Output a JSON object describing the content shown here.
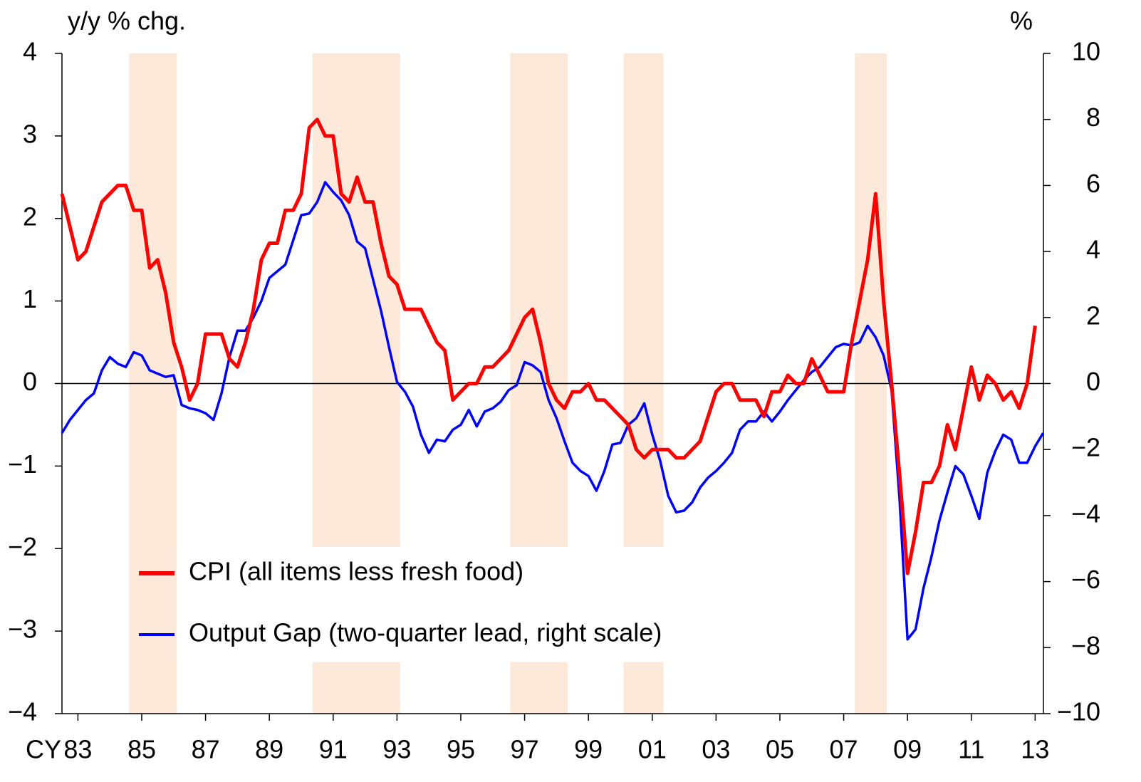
{
  "chart_data": {
    "type": "line",
    "y_label": "y/y % chg.",
    "y2_label": "%",
    "x_label": "CY",
    "x": [
      1983,
      1983.25,
      1983.5,
      1983.75,
      1984,
      1984.25,
      1984.5,
      1984.75,
      1985,
      1985.25,
      1985.5,
      1985.75,
      1986,
      1986.25,
      1986.5,
      1986.75,
      1987,
      1987.25,
      1987.5,
      1987.75,
      1988,
      1988.25,
      1988.5,
      1988.75,
      1989,
      1989.25,
      1989.5,
      1989.75,
      1990,
      1990.25,
      1990.5,
      1990.75,
      1991,
      1991.25,
      1991.5,
      1991.75,
      1992,
      1992.25,
      1992.5,
      1992.75,
      1993,
      1993.25,
      1993.5,
      1993.75,
      1994,
      1994.25,
      1994.5,
      1994.75,
      1995,
      1995.25,
      1995.5,
      1995.75,
      1996,
      1996.25,
      1996.5,
      1996.75,
      1997,
      1997.25,
      1997.5,
      1997.75,
      1998,
      1998.25,
      1998.5,
      1998.75,
      1999,
      1999.25,
      1999.5,
      1999.75,
      2000,
      2000.25,
      2000.5,
      2000.75,
      2001,
      2001.25,
      2001.5,
      2001.75,
      2002,
      2002.25,
      2002.5,
      2002.75,
      2003,
      2003.25,
      2003.5,
      2003.75,
      2004,
      2004.25,
      2004.5,
      2004.75,
      2005,
      2005.25,
      2005.5,
      2005.75,
      2006,
      2006.25,
      2006.5,
      2006.75,
      2007,
      2007.25,
      2007.5,
      2007.75,
      2008,
      2008.25,
      2008.5,
      2008.75,
      2009,
      2009.25,
      2009.5,
      2009.75,
      2010,
      2010.25,
      2010.5,
      2010.75,
      2011,
      2011.25,
      2011.5,
      2011.75,
      2012,
      2012.25,
      2012.5,
      2012.75,
      2013,
      2013.25,
      2013.5,
      2013.75
    ],
    "series": [
      {
        "name": "CPI (all items less fresh food)",
        "color": "#ff0000",
        "axis": "y",
        "values": [
          2.3,
          1.9,
          1.5,
          1.6,
          1.9,
          2.2,
          2.3,
          2.4,
          2.4,
          2.1,
          2.1,
          1.4,
          1.5,
          1.1,
          0.5,
          0.2,
          -0.2,
          0,
          0.6,
          0.6,
          0.6,
          0.3,
          0.2,
          0.5,
          0.9,
          1.5,
          1.7,
          1.7,
          2.1,
          2.1,
          2.3,
          3.1,
          3.2,
          3.0,
          3.0,
          2.3,
          2.2,
          2.5,
          2.2,
          2.2,
          1.7,
          1.3,
          1.2,
          0.9,
          0.9,
          0.9,
          0.7,
          0.5,
          0.4,
          -0.2,
          -0.1,
          0,
          0,
          0.2,
          0.2,
          0.3,
          0.4,
          0.6,
          0.8,
          0.9,
          0.5,
          0,
          -0.2,
          -0.3,
          -0.1,
          -0.1,
          0,
          -0.2,
          -0.2,
          -0.3,
          -0.4,
          -0.5,
          -0.8,
          -0.9,
          -0.8,
          -0.8,
          -0.8,
          -0.9,
          -0.9,
          -0.8,
          -0.7,
          -0.4,
          -0.1,
          0,
          0,
          -0.2,
          -0.2,
          -0.2,
          -0.4,
          -0.1,
          -0.1,
          0.1,
          0,
          0,
          0.3,
          0.1,
          -0.1,
          -0.1,
          -0.1,
          0.5,
          1.0,
          1.5,
          2.3,
          1.0,
          0,
          -1.1,
          -2.3,
          -1.8,
          -1.2,
          -1.2,
          -1.0,
          -0.5,
          -0.8,
          -0.3,
          0.2,
          -0.2,
          0.1,
          0,
          -0.2,
          -0.1,
          -0.3,
          0,
          0.7,
          null
        ]
      },
      {
        "name": "Output Gap (two-quarter lead, right scale)",
        "color": "#0000ff",
        "axis": "y2",
        "values": [
          -1.5,
          -1.1,
          -0.8,
          -0.5,
          -0.3,
          0.4,
          0.8,
          0.6,
          0.5,
          0.95,
          0.85,
          0.4,
          0.3,
          0.2,
          0.25,
          -0.65,
          -0.75,
          -0.8,
          -0.9,
          -1.1,
          -0.3,
          0.8,
          1.6,
          1.6,
          2.0,
          2.5,
          3.2,
          3.4,
          3.6,
          4.35,
          5.1,
          5.15,
          5.5,
          6.1,
          5.8,
          5.55,
          5.1,
          4.3,
          4.1,
          3.15,
          2.2,
          1.1,
          0.05,
          -0.25,
          -0.7,
          -1.55,
          -2.1,
          -1.7,
          -1.75,
          -1.4,
          -1.25,
          -0.8,
          -1.3,
          -0.85,
          -0.75,
          -0.55,
          -0.2,
          -0.05,
          0.65,
          0.55,
          0.35,
          -0.5,
          -1.05,
          -1.75,
          -2.4,
          -2.65,
          -2.8,
          -3.25,
          -2.65,
          -1.85,
          -1.8,
          -1.25,
          -1.05,
          -0.6,
          -1.55,
          -2.35,
          -3.4,
          -3.9,
          -3.85,
          -3.6,
          -3.15,
          -2.85,
          -2.65,
          -2.4,
          -2.1,
          -1.4,
          -1.15,
          -1.15,
          -0.85,
          -1.15,
          -0.85,
          -0.5,
          -0.2,
          0.1,
          0.35,
          0.5,
          0.8,
          1.1,
          1.2,
          1.15,
          1.25,
          1.75,
          1.4,
          0.85,
          -0.2,
          -3.5,
          -7.75,
          -7.45,
          -6.2,
          -5.25,
          -4.15,
          -3.3,
          -2.5,
          -2.75,
          -3.4,
          -4.1,
          -2.7,
          -2.05,
          -1.55,
          -1.7,
          -2.4,
          -2.4,
          -1.9,
          -1.5
        ]
      }
    ],
    "shaded_ranges": [
      [
        1985.1,
        1986.6
      ],
      [
        1990.85,
        1993.6
      ],
      [
        1997.05,
        1998.85
      ],
      [
        2000.6,
        2001.85
      ],
      [
        2007.85,
        2008.85
      ]
    ],
    "shade_color": "#fde9d9",
    "xlim": [
      1983,
      2013.76
    ],
    "xticks": [
      {
        "value": 1983.5,
        "label": "83"
      },
      {
        "value": 1985.5,
        "label": "85"
      },
      {
        "value": 1987.5,
        "label": "87"
      },
      {
        "value": 1989.5,
        "label": "89"
      },
      {
        "value": 1991.5,
        "label": "91"
      },
      {
        "value": 1993.5,
        "label": "93"
      },
      {
        "value": 1995.5,
        "label": "95"
      },
      {
        "value": 1997.5,
        "label": "97"
      },
      {
        "value": 1999.5,
        "label": "99"
      },
      {
        "value": 2001.5,
        "label": "01"
      },
      {
        "value": 2003.5,
        "label": "03"
      },
      {
        "value": 2005.5,
        "label": "05"
      },
      {
        "value": 2007.5,
        "label": "07"
      },
      {
        "value": 2009.5,
        "label": "09"
      },
      {
        "value": 2011.5,
        "label": "11"
      },
      {
        "value": 2013.5,
        "label": "13"
      }
    ],
    "ylim": [
      -4,
      4
    ],
    "yticks": [
      {
        "value": -4,
        "label": "−4"
      },
      {
        "value": -3,
        "label": "−3"
      },
      {
        "value": -2,
        "label": "−2"
      },
      {
        "value": -1,
        "label": "−1"
      },
      0,
      1,
      2,
      3,
      4
    ],
    "y2lim": [
      -10,
      10
    ],
    "y2ticks": [
      {
        "value": -10,
        "label": "−10"
      },
      {
        "value": -8,
        "label": "−8"
      },
      {
        "value": -6,
        "label": "−6"
      },
      {
        "value": -4,
        "label": "−4"
      },
      {
        "value": -2,
        "label": "−2"
      },
      0,
      2,
      4,
      6,
      8,
      10
    ],
    "zero_line": true
  }
}
